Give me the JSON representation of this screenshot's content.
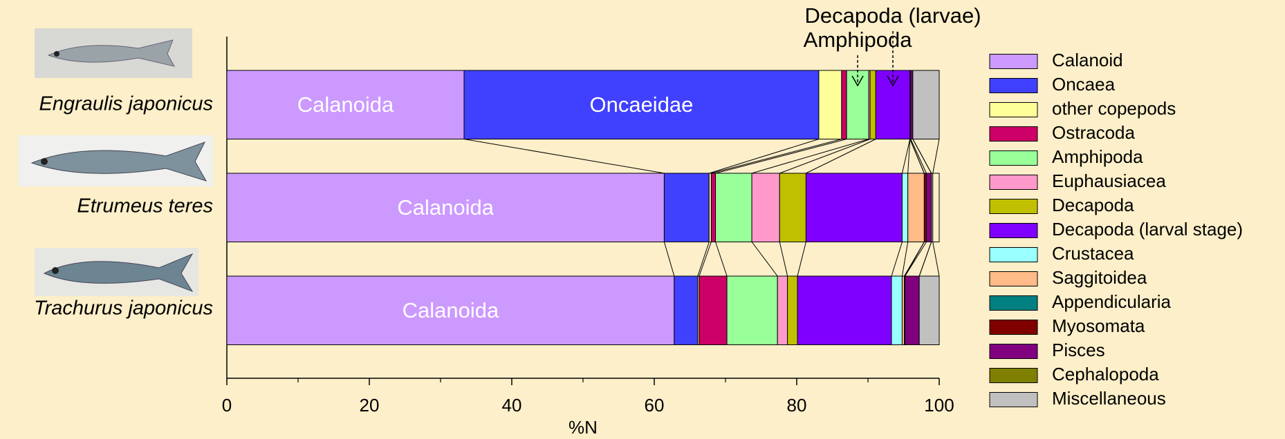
{
  "chart_data": {
    "type": "stacked_barh",
    "x_label": "%N",
    "categories": [
      "Engraulis japonicus",
      "Etrumeus teres",
      "Trachurus japonicus"
    ],
    "xlim": [
      0,
      100
    ],
    "xticks": [
      0,
      20,
      40,
      60,
      80,
      100
    ],
    "xminorticks": [
      10,
      30,
      50,
      70,
      90
    ],
    "series": [
      {
        "name": "Calanoid",
        "color": "#cc99ff",
        "values": [
          33.3,
          61.4,
          62.8
        ],
        "segment_labels": [
          "Calanoida",
          "Calanoida",
          "Calanoida"
        ]
      },
      {
        "name": "Oncaea",
        "color": "#4040ff",
        "values": [
          49.8,
          6.3,
          3.3
        ],
        "segment_labels": [
          "Oncaeidae",
          null,
          null
        ]
      },
      {
        "name": "other copepods",
        "color": "#ffff99",
        "values": [
          3.2,
          0.3,
          0.2
        ]
      },
      {
        "name": "Ostracoda",
        "color": "#cc0066",
        "values": [
          0.7,
          0.6,
          3.9
        ]
      },
      {
        "name": "Amphipoda",
        "color": "#99ff99",
        "values": [
          3.1,
          5.1,
          7.1
        ],
        "annotation": "Amphipoda"
      },
      {
        "name": "Euphausiacea",
        "color": "#ff99cc",
        "values": [
          0.2,
          3.9,
          1.4
        ]
      },
      {
        "name": "Decapoda",
        "color": "#c0c000",
        "values": [
          0.8,
          3.7,
          1.4
        ]
      },
      {
        "name": "Decapoda (larval stage)",
        "color": "#8000ff",
        "values": [
          4.8,
          13.5,
          13.2
        ],
        "annotation": "Decapoda (larvae)"
      },
      {
        "name": "Crustacea",
        "color": "#99ffff",
        "values": [
          0,
          0.8,
          1.5
        ]
      },
      {
        "name": "Saggitoidea",
        "color": "#ffbb88",
        "values": [
          0,
          2.3,
          0.3
        ]
      },
      {
        "name": "Appendicularia",
        "color": "#008080",
        "values": [
          0,
          0,
          0.1
        ]
      },
      {
        "name": "Myosomata",
        "color": "#800000",
        "values": [
          0.1,
          0.3,
          0
        ]
      },
      {
        "name": "Pisces",
        "color": "#800080",
        "values": [
          0.3,
          0.7,
          2.0
        ]
      },
      {
        "name": "Cephalopoda",
        "color": "#808000",
        "values": [
          0,
          0,
          0
        ]
      },
      {
        "name": "Miscellaneous",
        "color": "#c0c0c0",
        "values": [
          3.7,
          0.2,
          2.8
        ]
      }
    ]
  }
}
